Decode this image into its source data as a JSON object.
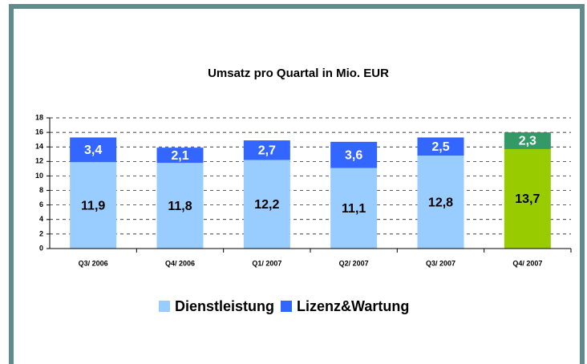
{
  "chart_data": {
    "type": "stacked_bar",
    "title": "Umsatz pro Quartal in Mio. EUR",
    "categories": [
      "Q3/ 2006",
      "Q4/ 2006",
      "Q1/ 2007",
      "Q2/ 2007",
      "Q3/ 2007",
      "Q4/ 2007"
    ],
    "series": [
      {
        "name": "Dienstleistung",
        "color": "#99ccff",
        "colors": [
          "#99ccff",
          "#99ccff",
          "#99ccff",
          "#99ccff",
          "#99ccff",
          "#99cc00"
        ],
        "values": [
          11.9,
          11.8,
          12.2,
          11.1,
          12.8,
          13.7
        ],
        "value_labels": [
          "11,9",
          "11,8",
          "12,2",
          "11,1",
          "12,8",
          "13,7"
        ]
      },
      {
        "name": "Lizenz&Wartung",
        "color": "#3366ff",
        "colors": [
          "#3366ff",
          "#3366ff",
          "#3366ff",
          "#3366ff",
          "#3366ff",
          "#339966"
        ],
        "values": [
          3.4,
          2.1,
          2.7,
          3.6,
          2.5,
          2.3
        ],
        "value_labels": [
          "3,4",
          "2,1",
          "2,7",
          "3,6",
          "2,5",
          "2,3"
        ]
      }
    ],
    "ylim": [
      0,
      18
    ],
    "yticks": [
      0,
      2,
      4,
      6,
      8,
      10,
      12,
      14,
      16,
      18
    ],
    "grid": true,
    "legend": "bottom"
  }
}
